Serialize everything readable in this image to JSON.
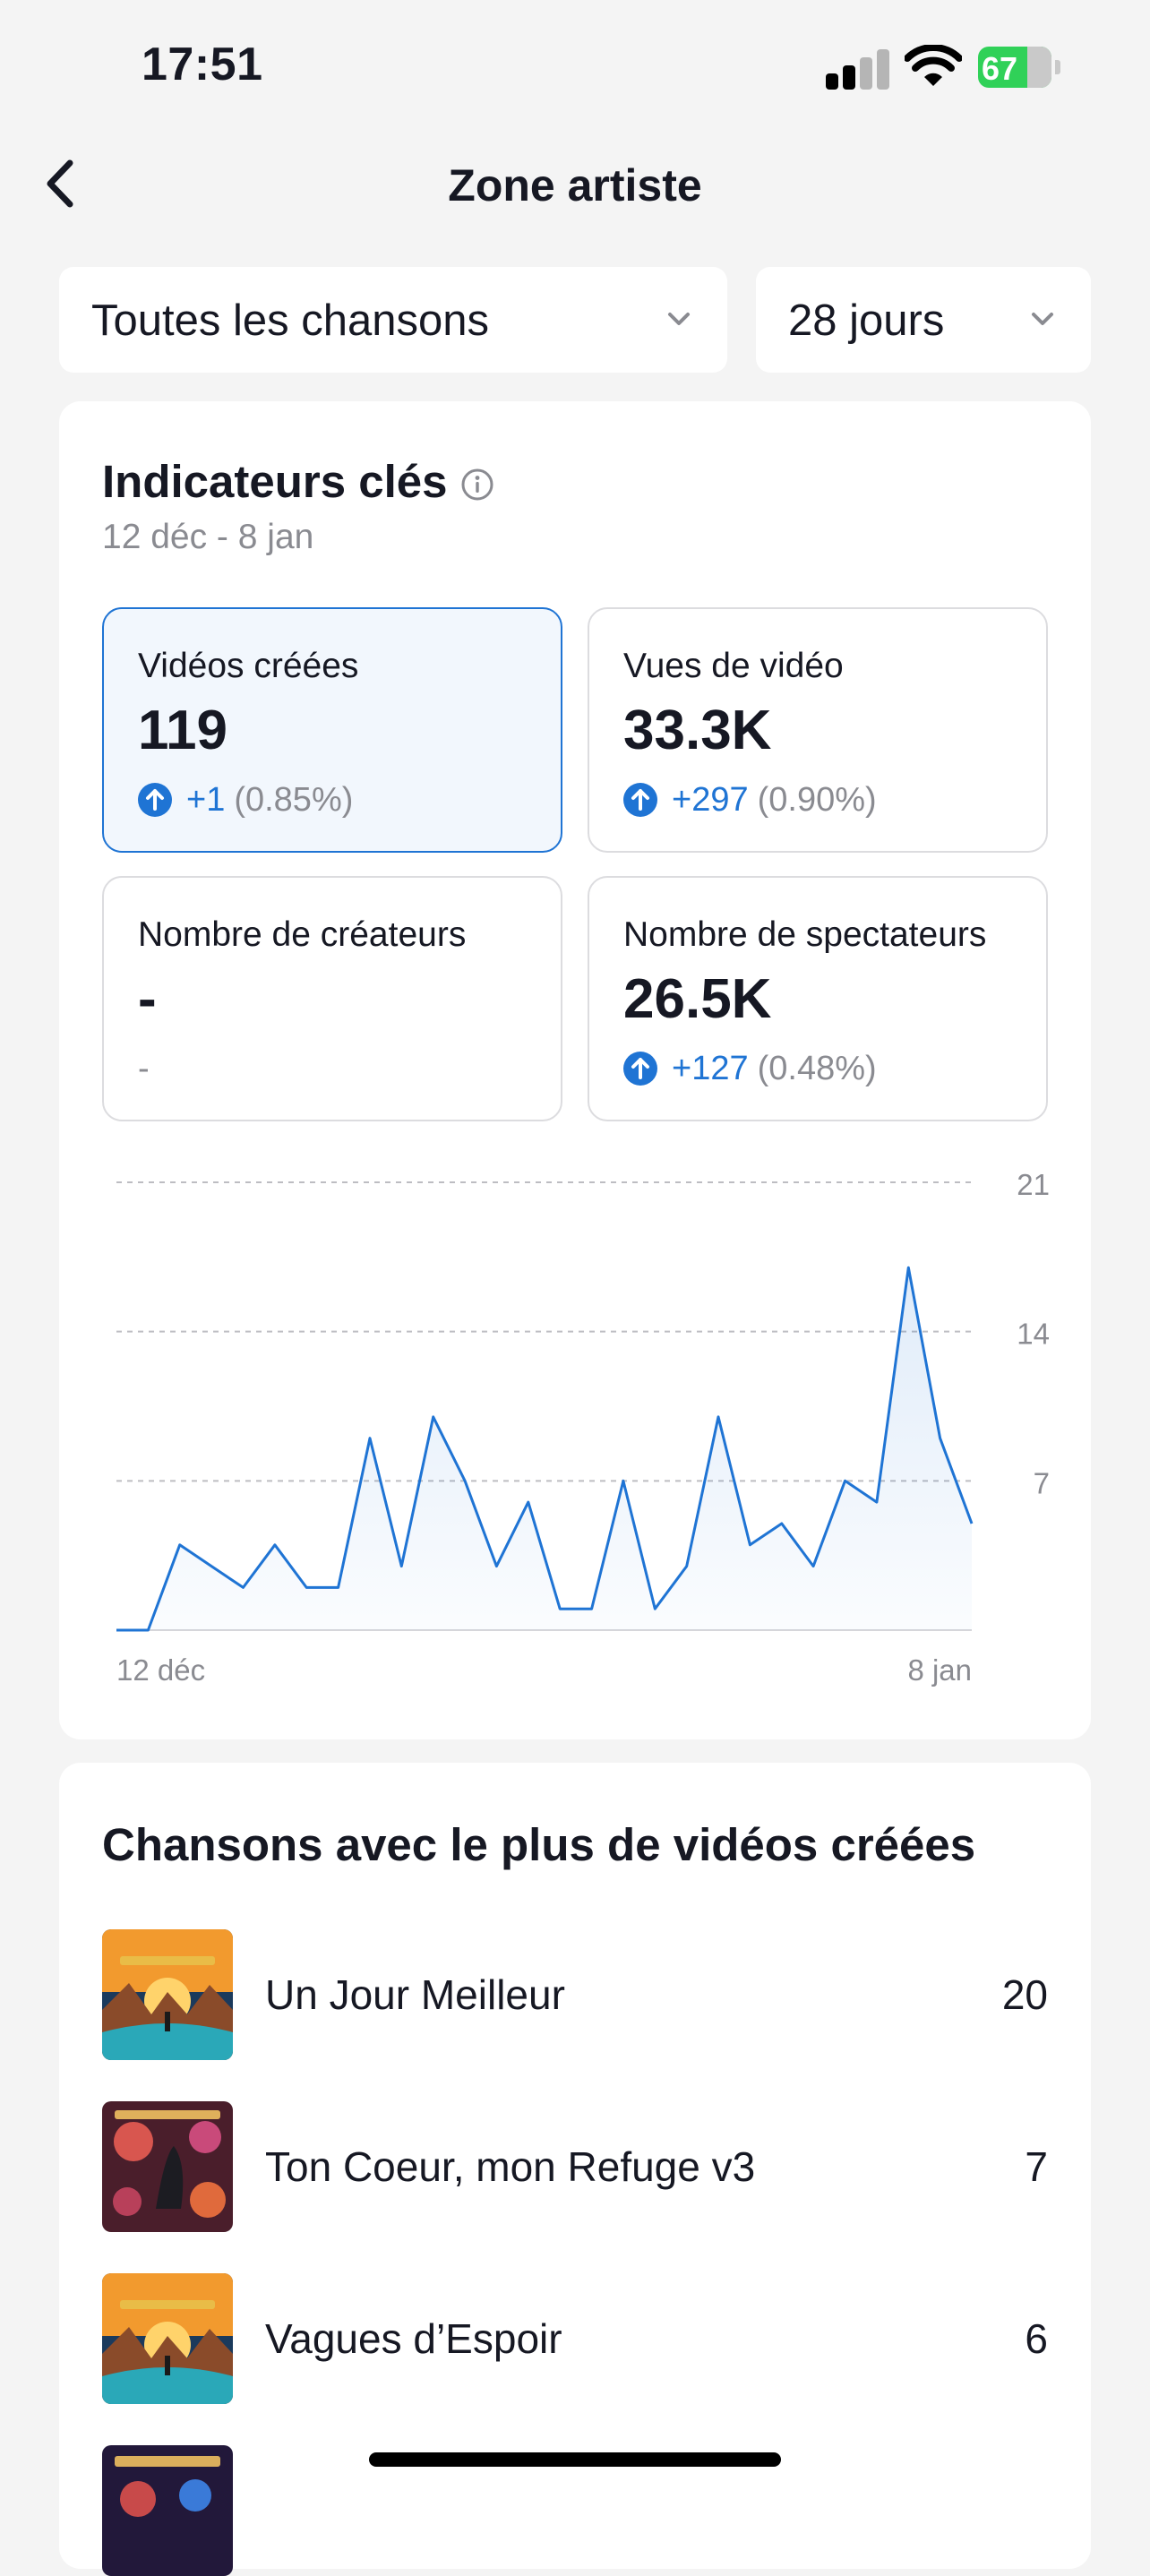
{
  "status_bar": {
    "time": "17:51",
    "battery": "67",
    "battery_level": 0.67
  },
  "nav": {
    "title": "Zone artiste",
    "icons": {
      "back": "chevron-left-icon"
    }
  },
  "filters": {
    "songs": {
      "value": "Toutes les chansons"
    },
    "period": {
      "value": "28 jours"
    }
  },
  "key_metrics": {
    "title": "Indicateurs clés",
    "date_range": "12 déc - 8 jan",
    "tiles": [
      {
        "label": "Vidéos créées",
        "value": "119",
        "delta": "+1",
        "delta_pct": "(0.85%)"
      },
      {
        "label": "Vues de vidéo",
        "value": "33.3K",
        "delta": "+297",
        "delta_pct": "(0.90%)"
      },
      {
        "label": "Nombre de créateurs",
        "value": "-",
        "delta": "-"
      },
      {
        "label": "Nombre de spectateurs",
        "value": "26.5K",
        "delta": "+127",
        "delta_pct": "(0.48%)"
      }
    ]
  },
  "chart_data": {
    "type": "area",
    "title": "",
    "x_start_label": "12 déc",
    "x_end_label": "8 jan",
    "ylim": [
      0,
      21
    ],
    "y_ticks": [
      "21",
      "14",
      "7"
    ],
    "grid": true,
    "color": "#1f74d4",
    "values": [
      0,
      0,
      4,
      3,
      2,
      4,
      2,
      2,
      9,
      3,
      10,
      7,
      3,
      6,
      1,
      1,
      7,
      1,
      3,
      10,
      4,
      5,
      3,
      7,
      6,
      17,
      9,
      5
    ]
  },
  "top_songs": {
    "title": "Chansons avec le plus de vidéos créées",
    "items": [
      {
        "name": "Un Jour Meilleur",
        "count": "20"
      },
      {
        "name": "Ton Coeur, mon Refuge v3",
        "count": "7"
      },
      {
        "name": "Vagues d’Espoir",
        "count": "6"
      }
    ]
  },
  "colors": {
    "accent": "#1f74d4",
    "background": "#f4f4f4",
    "card": "#ffffff",
    "battery": "#30d158"
  }
}
